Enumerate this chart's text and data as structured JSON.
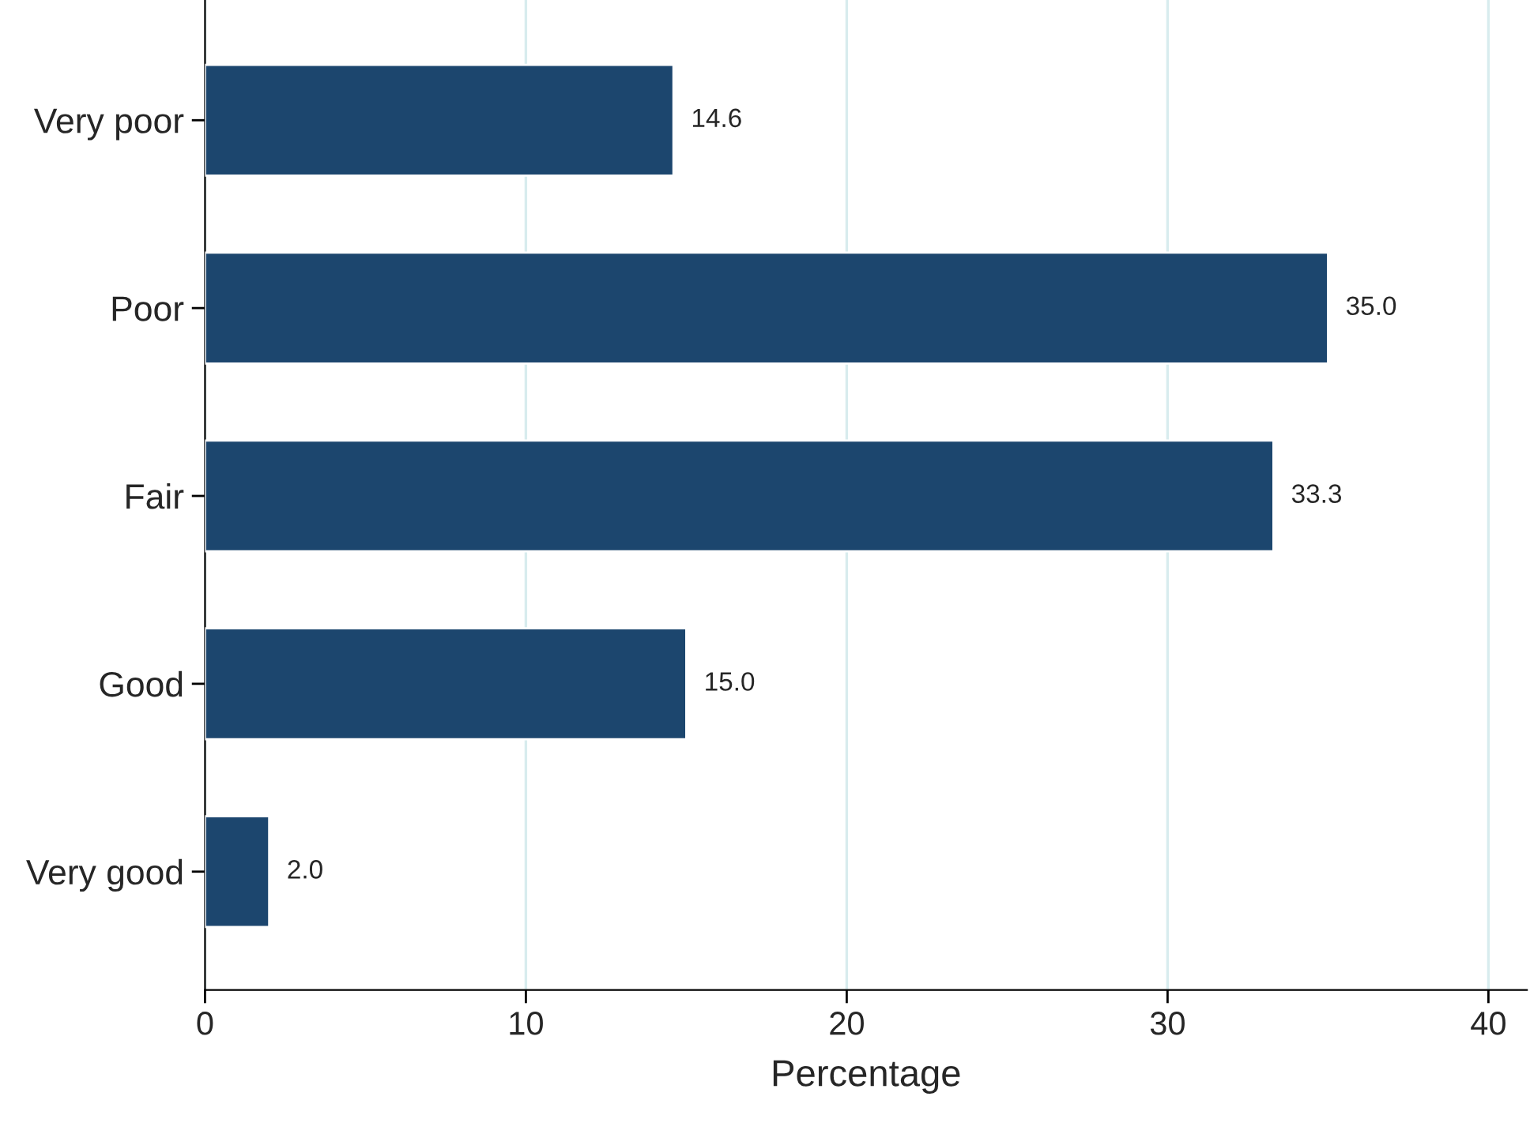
{
  "chart_data": {
    "type": "bar",
    "orientation": "horizontal",
    "xlabel": "Percentage",
    "categories": [
      "Very poor",
      "Poor",
      "Fair",
      "Good",
      "Very good"
    ],
    "values": [
      14.6,
      35.0,
      33.3,
      15.0,
      2.0
    ],
    "value_labels": [
      "14.6",
      "35.0",
      "33.3",
      "15.0",
      "2.0"
    ],
    "color": "#1c466e",
    "xlim": [
      0,
      41.2
    ],
    "xticks": [
      0,
      10,
      20,
      30,
      40
    ],
    "grid": "x",
    "legend": false
  }
}
